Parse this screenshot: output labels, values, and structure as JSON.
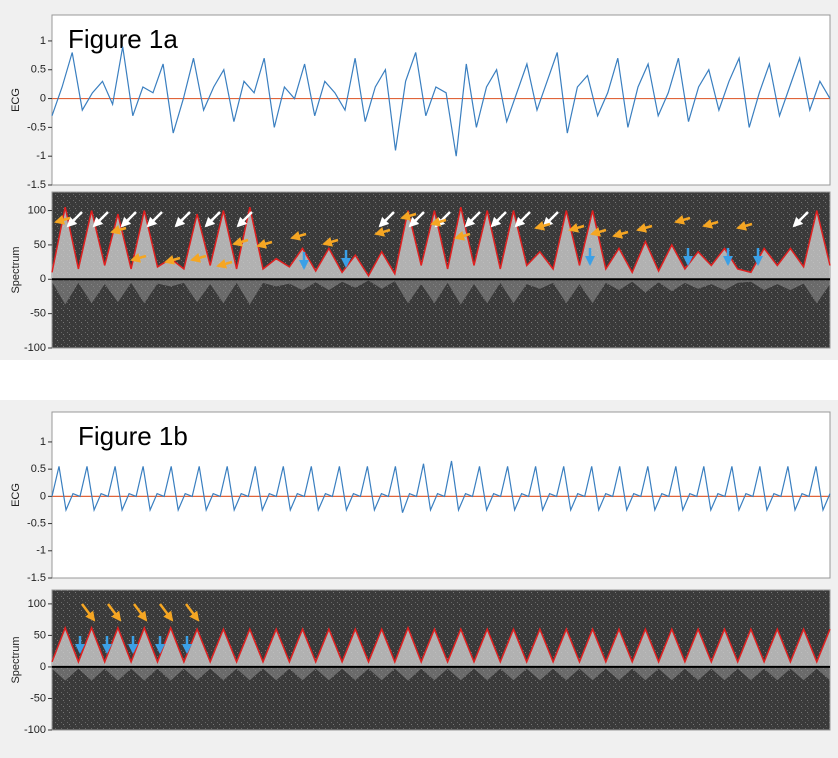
{
  "chart_data": [
    {
      "type": "line",
      "annotation": "Figure 1a",
      "ylabel": "ECG",
      "ylim": [
        -1.5,
        1.45
      ],
      "yticks": [
        1,
        0.5,
        0,
        -0.5,
        -1,
        -1.5
      ],
      "color": "#3a7fc0",
      "zero_line_color": "#e0643a",
      "values": [
        -0.3,
        0.2,
        0.8,
        -0.2,
        0.1,
        0.3,
        -0.1,
        0.9,
        -0.3,
        0.2,
        0.1,
        0.6,
        -0.6,
        0.0,
        0.7,
        -0.2,
        0.2,
        0.5,
        -0.4,
        0.3,
        0.1,
        0.7,
        -0.5,
        0.2,
        0.0,
        0.6,
        -0.3,
        0.3,
        0.1,
        -0.2,
        0.7,
        -0.4,
        0.2,
        0.5,
        -0.9,
        0.3,
        0.8,
        -0.3,
        0.2,
        0.1,
        -1.0,
        0.6,
        -0.5,
        0.2,
        0.5,
        -0.4,
        0.1,
        0.6,
        -0.2,
        0.3,
        0.8,
        -0.6,
        0.2,
        0.4,
        -0.3,
        0.1,
        0.7,
        -0.5,
        0.2,
        0.6,
        -0.3,
        0.1,
        0.7,
        -0.4,
        0.2,
        0.5,
        -0.2,
        0.3,
        0.7,
        -0.5,
        0.1,
        0.6,
        -0.3,
        0.2,
        0.7,
        -0.2,
        0.3,
        0.0
      ]
    },
    {
      "type": "spectrum",
      "ylabel": "Spectrum",
      "ylim": [
        -100,
        127
      ],
      "yticks": [
        100,
        50,
        0,
        -50,
        -100
      ],
      "color": "#e02020",
      "values": [
        10,
        105,
        15,
        100,
        20,
        95,
        15,
        100,
        18,
        30,
        15,
        95,
        20,
        100,
        15,
        105,
        15,
        30,
        18,
        45,
        12,
        45,
        10,
        35,
        5,
        40,
        8,
        100,
        20,
        100,
        15,
        105,
        20,
        100,
        15,
        100,
        20,
        40,
        15,
        100,
        20,
        100,
        15,
        45,
        10,
        55,
        12,
        50,
        15,
        40,
        20,
        45,
        15,
        10,
        45,
        20,
        45,
        18,
        100,
        20
      ]
    },
    {
      "type": "line",
      "annotation": "Figure 1b",
      "ylabel": "ECG",
      "ylim": [
        -1.5,
        1.55
      ],
      "yticks": [
        1,
        0.5,
        0,
        -0.5,
        -1,
        -1.5
      ],
      "color": "#3a7fc0",
      "zero_line_color": "#e0643a",
      "values": [
        0,
        0.55,
        -0.25,
        0.05,
        0,
        0.55,
        -0.25,
        0.05,
        0,
        0.55,
        -0.25,
        0.05,
        0,
        0.55,
        -0.25,
        0.05,
        0,
        0.55,
        -0.25,
        0.05,
        0,
        0.55,
        -0.25,
        0.05,
        0,
        0.55,
        -0.25,
        0.05,
        0,
        0.55,
        -0.25,
        0.05,
        0,
        0.55,
        -0.25,
        0.05,
        0,
        0.55,
        -0.25,
        0.05,
        0,
        0.55,
        -0.25,
        0.05,
        0,
        0.55,
        -0.25,
        0.05,
        0,
        0.55,
        -0.3,
        0.05,
        0,
        0.6,
        -0.25,
        0.05,
        0,
        0.65,
        -0.25,
        0.05,
        0,
        0.55,
        -0.25,
        0.05,
        0,
        0.55,
        -0.25,
        0.05,
        0,
        0.55,
        -0.25,
        0.05,
        0,
        0.55,
        -0.25,
        0.05,
        0,
        0.55,
        -0.25,
        0.05,
        0,
        0.55,
        -0.25,
        0.05,
        0,
        0.55,
        -0.25,
        0.05,
        0,
        0.55,
        -0.25,
        0.05,
        0,
        0.55,
        -0.25,
        0.05,
        0,
        0.55,
        -0.25,
        0.05,
        0,
        0.55,
        -0.25,
        0.05,
        0,
        0.55,
        -0.25,
        0.05,
        0,
        0.55,
        -0.25,
        0.05
      ]
    },
    {
      "type": "spectrum",
      "ylabel": "Spectrum",
      "ylim": [
        -100,
        122
      ],
      "yticks": [
        100,
        50,
        0,
        -50,
        -100
      ],
      "color": "#e02020",
      "values": [
        8,
        62,
        8,
        62,
        8,
        62,
        8,
        62,
        8,
        62,
        8,
        60,
        8,
        60,
        8,
        60,
        8,
        60,
        8,
        60,
        8,
        60,
        8,
        60,
        8,
        60,
        8,
        62,
        8,
        60,
        8,
        60,
        8,
        60,
        8,
        60,
        8,
        60,
        8,
        60,
        8,
        60,
        8,
        60,
        8,
        60,
        8,
        60,
        8,
        60,
        8,
        60,
        8,
        60,
        8,
        60,
        8,
        60,
        8,
        60
      ]
    }
  ]
}
